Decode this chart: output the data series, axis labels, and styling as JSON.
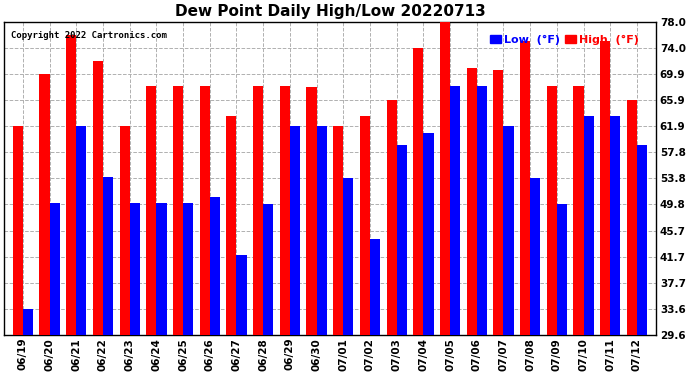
{
  "title": "Dew Point Daily High/Low 20220713",
  "copyright": "Copyright 2022 Cartronics.com",
  "dates": [
    "06/19",
    "06/20",
    "06/21",
    "06/22",
    "06/23",
    "06/24",
    "06/25",
    "06/26",
    "06/27",
    "06/28",
    "06/29",
    "06/30",
    "07/01",
    "07/02",
    "07/03",
    "07/04",
    "07/05",
    "07/06",
    "07/07",
    "07/08",
    "07/09",
    "07/10",
    "07/11",
    "07/12"
  ],
  "high": [
    61.9,
    69.9,
    76.0,
    72.0,
    61.9,
    68.0,
    68.0,
    68.0,
    63.5,
    68.0,
    68.0,
    67.9,
    61.9,
    63.5,
    65.9,
    74.0,
    78.0,
    70.9,
    70.5,
    75.0,
    68.0,
    68.0,
    75.0,
    65.9
  ],
  "low": [
    33.6,
    50.0,
    61.9,
    54.0,
    50.0,
    50.0,
    50.0,
    51.0,
    42.0,
    49.8,
    61.9,
    61.9,
    53.8,
    44.5,
    59.0,
    60.8,
    68.0,
    68.0,
    61.9,
    53.8,
    49.8,
    63.5,
    63.5,
    59.0
  ],
  "ylim_min": 29.6,
  "ylim_max": 78.0,
  "yticks": [
    29.6,
    33.6,
    37.7,
    41.7,
    45.7,
    49.8,
    53.8,
    57.8,
    61.9,
    65.9,
    69.9,
    74.0,
    78.0
  ],
  "bar_width": 0.38,
  "high_color": "#ff0000",
  "low_color": "#0000ff",
  "bg_color": "#ffffff",
  "grid_color": "#b0b0b0",
  "title_fontsize": 11,
  "tick_fontsize": 7.5,
  "legend_low_label": "Low  (°F)",
  "legend_high_label": "High  (°F)"
}
